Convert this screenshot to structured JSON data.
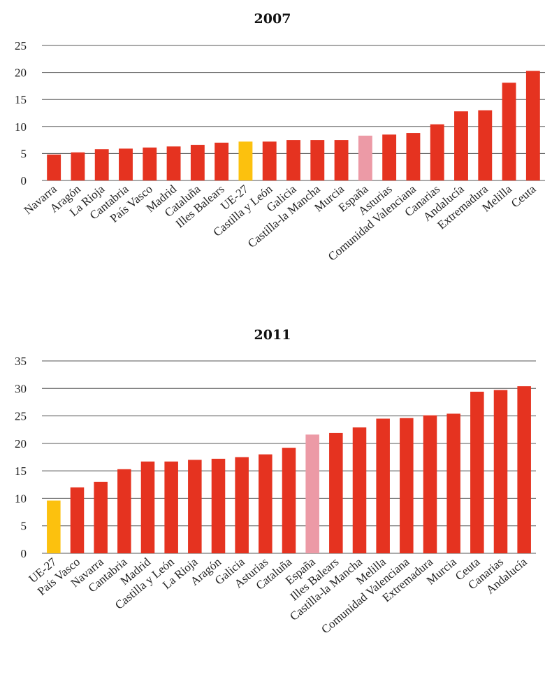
{
  "chart_data": [
    {
      "type": "bar",
      "title": "2007",
      "xlabel": "",
      "ylabel": "",
      "ylim": [
        0,
        25
      ],
      "yticks": [
        0,
        5,
        10,
        15,
        20,
        25
      ],
      "grid": true,
      "categories": [
        "Navarra",
        "Aragón",
        "La Rioja",
        "Cantabria",
        "País Vasco",
        "Madrid",
        "Cataluña",
        "Illes Balears",
        "UE-27",
        "Castilla y León",
        "Galicia",
        "Castilla-la Mancha",
        "Murcia",
        "España",
        "Asturias",
        "Comunidad Valenciana",
        "Canarias",
        "Andalucía",
        "Extremadura",
        "Melilla",
        "Ceuta"
      ],
      "values": [
        4.8,
        5.2,
        5.8,
        5.9,
        6.1,
        6.3,
        6.6,
        7.0,
        7.2,
        7.2,
        7.5,
        7.5,
        7.5,
        8.3,
        8.5,
        8.8,
        10.4,
        12.8,
        13.0,
        18.1,
        20.3
      ],
      "bar_colors": [
        "#e53320",
        "#e53320",
        "#e53320",
        "#e53320",
        "#e53320",
        "#e53320",
        "#e53320",
        "#e53320",
        "#fcc10e",
        "#e53320",
        "#e53320",
        "#e53320",
        "#e53320",
        "#ec9aa6",
        "#e53320",
        "#e53320",
        "#e53320",
        "#e53320",
        "#e53320",
        "#e53320",
        "#e53320"
      ]
    },
    {
      "type": "bar",
      "title": "2011",
      "xlabel": "",
      "ylabel": "",
      "ylim": [
        0,
        35
      ],
      "yticks": [
        0,
        5,
        10,
        15,
        20,
        25,
        30,
        35
      ],
      "grid": true,
      "categories": [
        "UE-27",
        "País Vasco",
        "Navarra",
        "Cantabria",
        "Madrid",
        "Castilla y León",
        "La Rioja",
        "Aragón",
        "Galicia",
        "Asturias",
        "Cataluña",
        "España",
        "Illes Balears",
        "Castilla-la Mancha",
        "Melilla",
        "Comunidad Valenciana",
        "Extremadura",
        "Murcia",
        "Ceuta",
        "Canarias",
        "Andalucía"
      ],
      "values": [
        9.6,
        12.0,
        13.0,
        15.3,
        16.7,
        16.7,
        17.0,
        17.2,
        17.5,
        18.0,
        19.2,
        21.6,
        21.9,
        22.9,
        24.5,
        24.6,
        25.1,
        25.4,
        29.4,
        29.7,
        30.4
      ],
      "bar_colors": [
        "#fcc10e",
        "#e53320",
        "#e53320",
        "#e53320",
        "#e53320",
        "#e53320",
        "#e53320",
        "#e53320",
        "#e53320",
        "#e53320",
        "#e53320",
        "#ec9aa6",
        "#e53320",
        "#e53320",
        "#e53320",
        "#e53320",
        "#e53320",
        "#e53320",
        "#e53320",
        "#e53320",
        "#e53320"
      ]
    }
  ]
}
